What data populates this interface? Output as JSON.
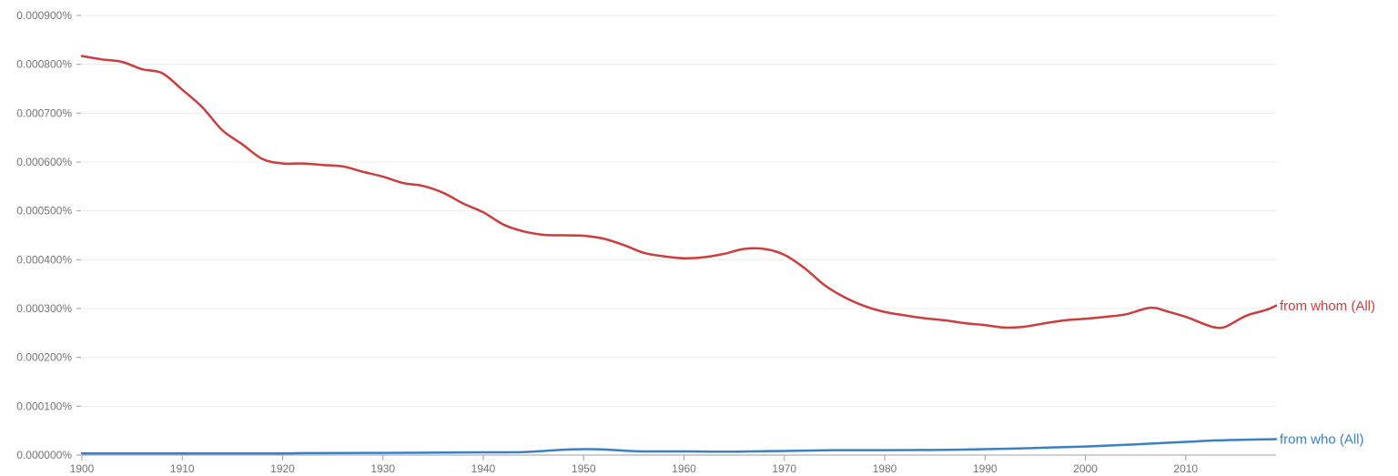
{
  "chart_data": {
    "type": "line",
    "x_axis": {
      "range": [
        1900,
        2019
      ],
      "ticks": [
        1900,
        1910,
        1920,
        1930,
        1940,
        1950,
        1960,
        1970,
        1980,
        1990,
        2000,
        2010
      ],
      "tick_labels": [
        "1900",
        "1910",
        "1920",
        "1930",
        "1940",
        "1950",
        "1960",
        "1970",
        "1980",
        "1990",
        "2000",
        "2010"
      ]
    },
    "y_axis": {
      "range": [
        0,
        0.0009
      ],
      "unit": "percent",
      "ticks": [
        0,
        0.0001,
        0.0002,
        0.0003,
        0.0004,
        0.0005,
        0.0006,
        0.0007,
        0.0008,
        0.0009
      ],
      "tick_labels": [
        "0.000000%",
        "0.000100%",
        "0.000200%",
        "0.000300%",
        "0.000400%",
        "0.000500%",
        "0.000600%",
        "0.000700%",
        "0.000800%",
        "0.000900%"
      ]
    },
    "grid": true,
    "legend": "inline labels at right end of lines",
    "series": [
      {
        "name": "from whom (All)",
        "color": "#cc3d3d",
        "points": [
          [
            1900,
            0.000817
          ],
          [
            1902,
            0.00081
          ],
          [
            1904,
            0.000805
          ],
          [
            1906,
            0.00079
          ],
          [
            1908,
            0.000782
          ],
          [
            1910,
            0.000748
          ],
          [
            1912,
            0.000712
          ],
          [
            1914,
            0.000665
          ],
          [
            1916,
            0.000636
          ],
          [
            1918,
            0.000606
          ],
          [
            1920,
            0.000597
          ],
          [
            1922,
            0.000597
          ],
          [
            1924,
            0.000594
          ],
          [
            1926,
            0.000591
          ],
          [
            1928,
            0.00058
          ],
          [
            1930,
            0.00057
          ],
          [
            1932,
            0.000557
          ],
          [
            1934,
            0.000551
          ],
          [
            1936,
            0.000537
          ],
          [
            1938,
            0.000515
          ],
          [
            1940,
            0.000497
          ],
          [
            1942,
            0.000472
          ],
          [
            1944,
            0.000458
          ],
          [
            1946,
            0.000451
          ],
          [
            1948,
            0.00045
          ],
          [
            1950,
            0.000449
          ],
          [
            1952,
            0.000443
          ],
          [
            1954,
            0.00043
          ],
          [
            1956,
            0.000414
          ],
          [
            1958,
            0.000407
          ],
          [
            1960,
            0.000403
          ],
          [
            1962,
            0.000405
          ],
          [
            1964,
            0.000412
          ],
          [
            1966,
            0.000422
          ],
          [
            1968,
            0.000422
          ],
          [
            1970,
            0.00041
          ],
          [
            1972,
            0.000383
          ],
          [
            1974,
            0.000348
          ],
          [
            1976,
            0.000323
          ],
          [
            1978,
            0.000305
          ],
          [
            1980,
            0.000293
          ],
          [
            1982,
            0.000286
          ],
          [
            1984,
            0.00028
          ],
          [
            1986,
            0.000276
          ],
          [
            1988,
            0.00027
          ],
          [
            1990,
            0.000266
          ],
          [
            1992,
            0.000261
          ],
          [
            1994,
            0.000263
          ],
          [
            1996,
            0.00027
          ],
          [
            1998,
            0.000276
          ],
          [
            2000,
            0.000279
          ],
          [
            2002,
            0.000283
          ],
          [
            2004,
            0.000288
          ],
          [
            2006,
            0.0003
          ],
          [
            2007,
            0.000301
          ],
          [
            2008,
            0.000295
          ],
          [
            2010,
            0.000283
          ],
          [
            2012,
            0.000267
          ],
          [
            2013,
            0.000261
          ],
          [
            2014,
            0.000263
          ],
          [
            2016,
            0.000285
          ],
          [
            2018,
            0.000297
          ],
          [
            2019,
            0.000306
          ]
        ]
      },
      {
        "name": "from who (All)",
        "color": "#3b7fc4",
        "points": [
          [
            1900,
            3.5e-06
          ],
          [
            1910,
            3.5e-06
          ],
          [
            1920,
            3.5e-06
          ],
          [
            1922,
            4e-06
          ],
          [
            1930,
            4.5e-06
          ],
          [
            1940,
            5.5e-06
          ],
          [
            1944,
            6e-06
          ],
          [
            1946,
            8.5e-06
          ],
          [
            1948,
            1.1e-05
          ],
          [
            1950,
            1.2e-05
          ],
          [
            1952,
            1.15e-05
          ],
          [
            1954,
            9e-06
          ],
          [
            1956,
            7.5e-06
          ],
          [
            1960,
            7.5e-06
          ],
          [
            1965,
            7e-06
          ],
          [
            1970,
            8.5e-06
          ],
          [
            1972,
            9e-06
          ],
          [
            1975,
            1e-05
          ],
          [
            1980,
            1e-05
          ],
          [
            1985,
            1.05e-05
          ],
          [
            1990,
            1.2e-05
          ],
          [
            1995,
            1.45e-05
          ],
          [
            2000,
            1.75e-05
          ],
          [
            2005,
            2.2e-05
          ],
          [
            2010,
            2.7e-05
          ],
          [
            2013,
            3e-05
          ],
          [
            2016,
            3.15e-05
          ],
          [
            2019,
            3.25e-05
          ]
        ]
      }
    ]
  }
}
